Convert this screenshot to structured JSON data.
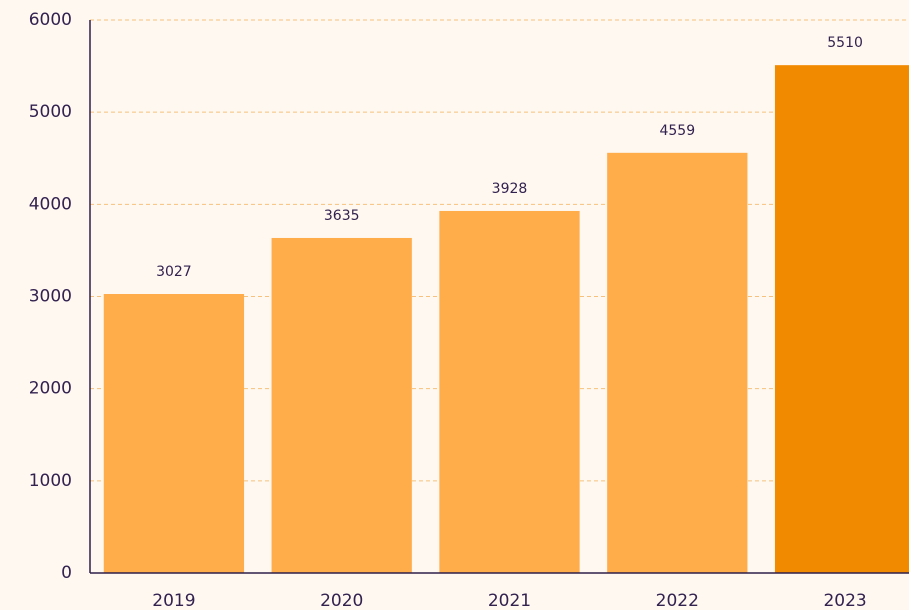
{
  "chart_data": {
    "type": "bar",
    "categories": [
      "2019",
      "2020",
      "2021",
      "2022",
      "2023"
    ],
    "values": [
      3027,
      3635,
      3928,
      4559,
      5510
    ],
    "colors": [
      "#ffac4b",
      "#ffac4b",
      "#ffac4b",
      "#ffac4b",
      "#f28a00"
    ],
    "ylim": [
      0,
      6000
    ],
    "yticks": [
      0,
      1000,
      2000,
      3000,
      4000,
      5000,
      6000
    ],
    "grid": true
  }
}
